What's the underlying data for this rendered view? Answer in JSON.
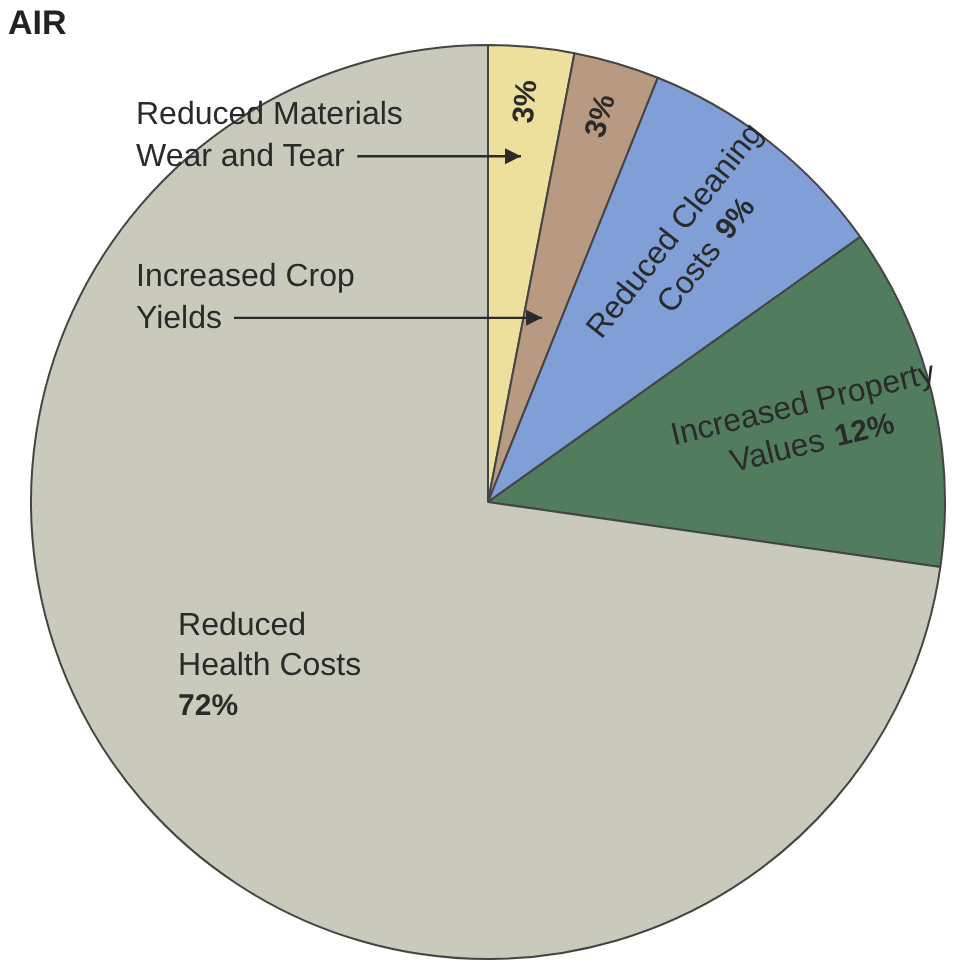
{
  "chart_data": {
    "type": "pie",
    "title": "AIR",
    "categories": [
      "Reduced Materials Wear and Tear",
      "Increased Crop Yields",
      "Reduced Cleaning Costs",
      "Increased Property Values",
      "Reduced Health Costs"
    ],
    "values": [
      3,
      3,
      9,
      12,
      72
    ],
    "value_labels": [
      "3%",
      "3%",
      "9%",
      "12%",
      "72%"
    ],
    "colors": [
      "#ece09c",
      "#b89a82",
      "#7f9fd6",
      "#527c5e",
      "#c9c9bc"
    ],
    "legend": false
  }
}
